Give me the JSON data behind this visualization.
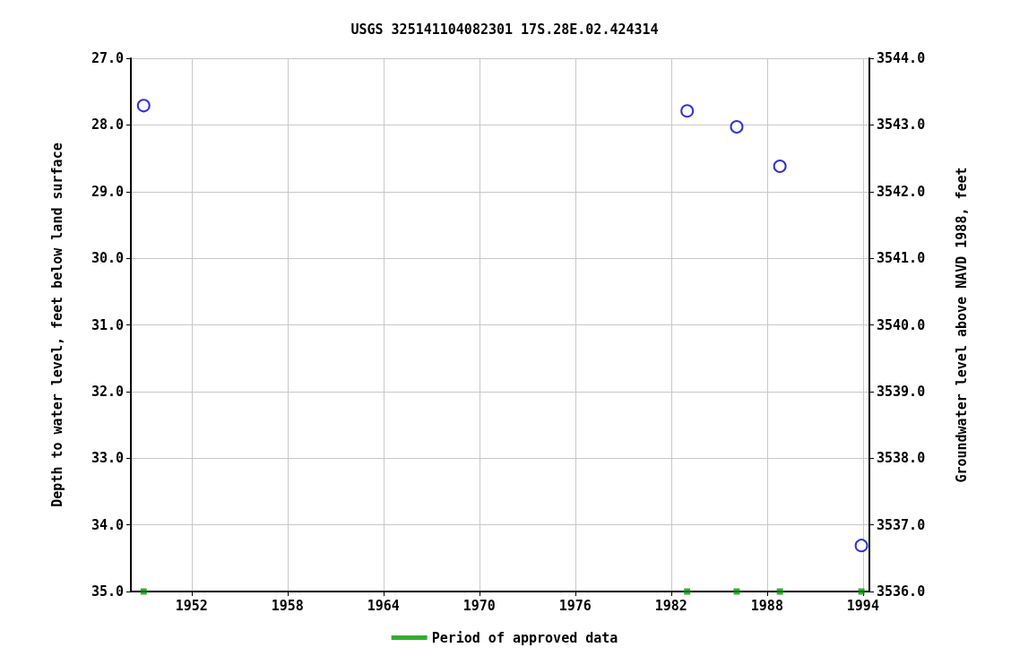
{
  "chart_data": {
    "type": "scatter",
    "title": "USGS 325141104082301 17S.28E.02.424314",
    "ylabel": "Depth to water level, feet below land surface",
    "y2label": "Groundwater level above NAVD 1988, feet",
    "xlim": [
      1948.2,
      1994.4
    ],
    "xticks": [
      1952,
      1958,
      1964,
      1970,
      1976,
      1982,
      1988,
      1994
    ],
    "ylim": [
      35,
      27
    ],
    "yticks": [
      {
        "value": 27,
        "label": "27.0"
      },
      {
        "value": 28,
        "label": "28.0"
      },
      {
        "value": 29,
        "label": "29.0"
      },
      {
        "value": 30,
        "label": "30.0"
      },
      {
        "value": 31,
        "label": "31.0"
      },
      {
        "value": 32,
        "label": "32.0"
      },
      {
        "value": 33,
        "label": "33.0"
      },
      {
        "value": 34,
        "label": "34.0"
      },
      {
        "value": 35,
        "label": "35.0"
      }
    ],
    "y2lim": [
      3536,
      3544
    ],
    "y2ticks": [
      {
        "value": 3536,
        "label": "3536.0"
      },
      {
        "value": 3537,
        "label": "3537.0"
      },
      {
        "value": 3538,
        "label": "3538.0"
      },
      {
        "value": 3539,
        "label": "3539.0"
      },
      {
        "value": 3540,
        "label": "3540.0"
      },
      {
        "value": 3541,
        "label": "3541.0"
      },
      {
        "value": 3542,
        "label": "3542.0"
      },
      {
        "value": 3543,
        "label": "3543.0"
      },
      {
        "value": 3544,
        "label": "3544.0"
      }
    ],
    "grid": true,
    "legend": "bottom",
    "series": [
      {
        "color": "#0000cc",
        "marker": "circle",
        "x": [
          1949.0,
          1983.0,
          1986.1,
          1988.8,
          1993.9
        ],
        "values": [
          27.71,
          27.79,
          28.03,
          28.62,
          34.31
        ]
      },
      {
        "name": "Period of approved data",
        "color": "#009900",
        "marker": "square",
        "x": [
          1949.0,
          1983.0,
          1986.1,
          1988.8,
          1993.9
        ],
        "values": [
          35,
          35,
          35,
          35,
          35
        ]
      }
    ]
  }
}
